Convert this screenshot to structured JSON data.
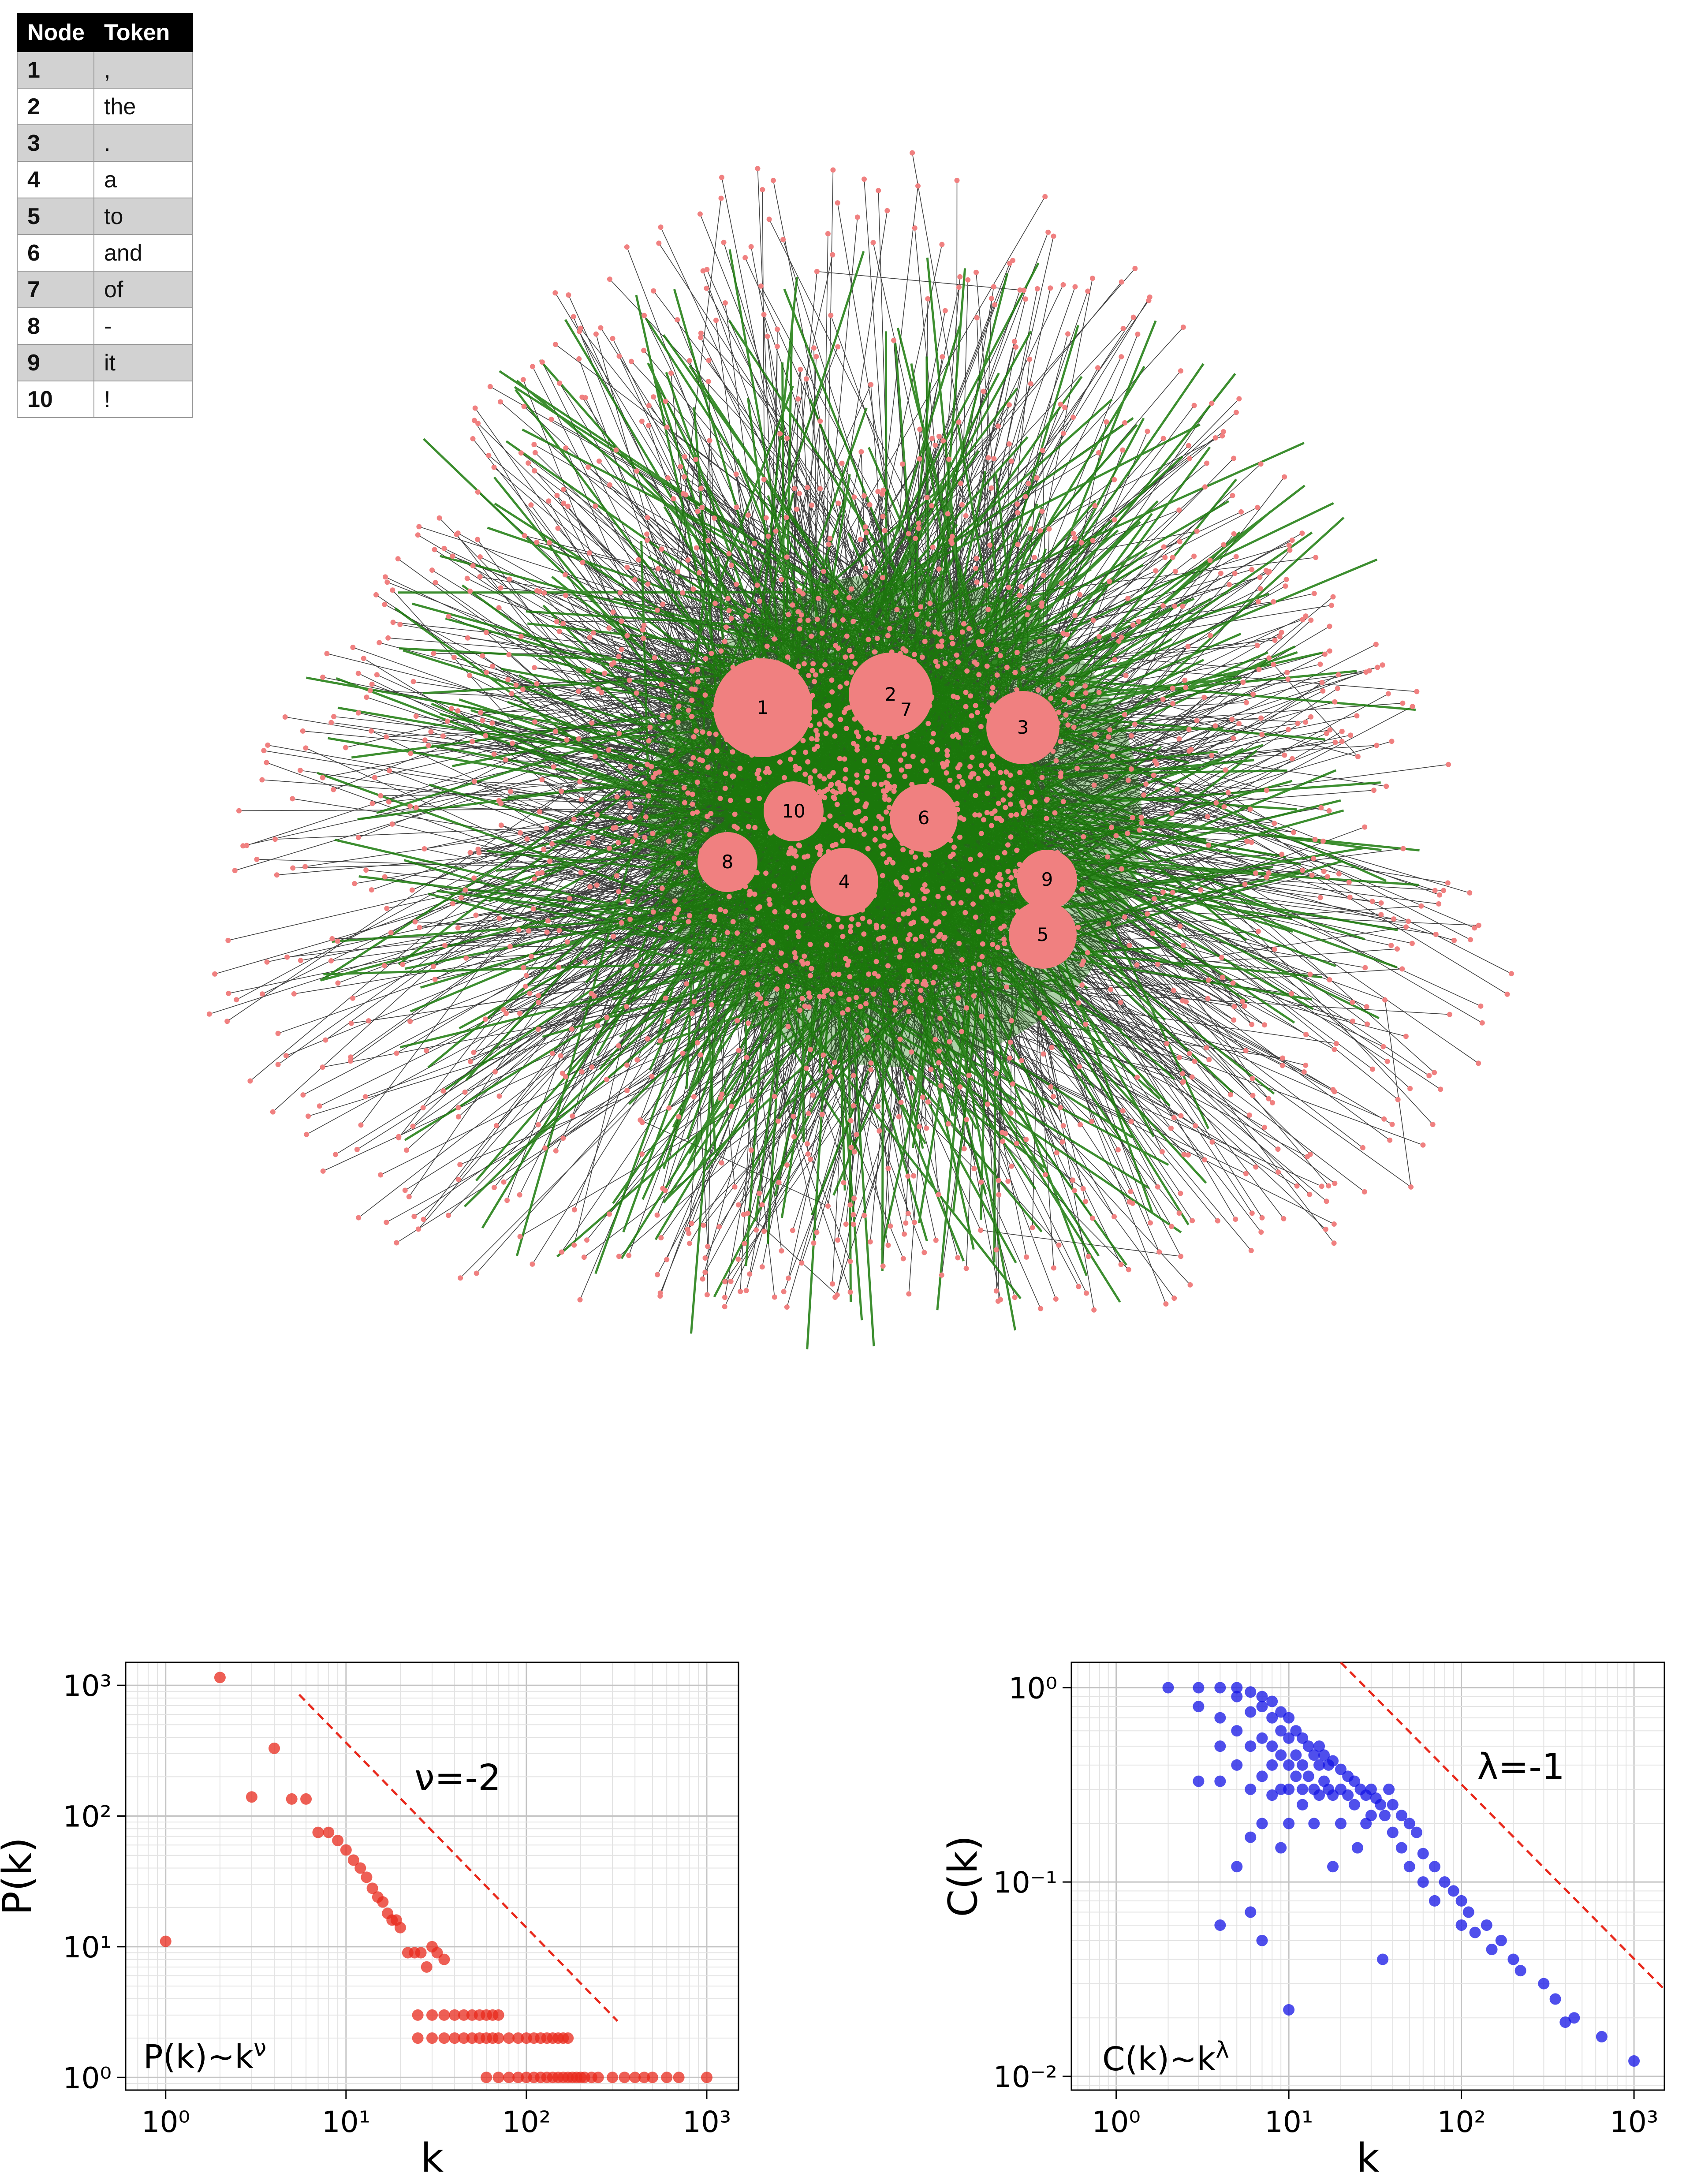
{
  "table": {
    "headers": {
      "node": "Node",
      "token": "Token"
    },
    "rows": [
      {
        "node": "1",
        "token": ","
      },
      {
        "node": "2",
        "token": "the"
      },
      {
        "node": "3",
        "token": "."
      },
      {
        "node": "4",
        "token": "a"
      },
      {
        "node": "5",
        "token": "to"
      },
      {
        "node": "6",
        "token": "and"
      },
      {
        "node": "7",
        "token": "of"
      },
      {
        "node": "8",
        "token": "-"
      },
      {
        "node": "9",
        "token": "it"
      },
      {
        "node": "10",
        "token": "!"
      }
    ]
  },
  "network": {
    "hubs": [
      {
        "label": "1",
        "radius": 112
      },
      {
        "label": "2",
        "radius": 95
      },
      {
        "label": "3",
        "radius": 83
      },
      {
        "label": "4",
        "radius": 77
      },
      {
        "label": "5",
        "radius": 77
      },
      {
        "label": "6",
        "radius": 77
      },
      {
        "label": "7",
        "radius": 0
      },
      {
        "label": "8",
        "radius": 68
      },
      {
        "label": "9",
        "radius": 68
      },
      {
        "label": "10",
        "radius": 68
      }
    ],
    "colors": {
      "node": "#f08080",
      "edge": "#000000",
      "highlight_edge": "#1a7a0a"
    }
  },
  "chart_data": [
    {
      "type": "scatter",
      "title": "",
      "xlabel": "k",
      "ylabel": "P(k)",
      "xscale": "log",
      "yscale": "log",
      "xlim": [
        0.6,
        1500
      ],
      "ylim": [
        0.8,
        1500
      ],
      "xticks": [
        1,
        10,
        100,
        1000
      ],
      "yticks": [
        1,
        10,
        100,
        1000
      ],
      "grid": true,
      "marker_color": "#e8291c",
      "points": [
        [
          1,
          11
        ],
        [
          2,
          1150
        ],
        [
          3,
          140
        ],
        [
          4,
          330
        ],
        [
          5,
          135
        ],
        [
          6,
          135
        ],
        [
          7,
          75
        ],
        [
          8,
          75
        ],
        [
          9,
          65
        ],
        [
          10,
          55
        ],
        [
          11,
          46
        ],
        [
          12,
          40
        ],
        [
          13,
          34
        ],
        [
          14,
          28
        ],
        [
          15,
          24
        ],
        [
          16,
          22
        ],
        [
          17,
          18
        ],
        [
          18,
          16
        ],
        [
          19,
          16
        ],
        [
          20,
          14
        ],
        [
          22,
          9
        ],
        [
          24,
          9
        ],
        [
          26,
          9
        ],
        [
          28,
          7
        ],
        [
          30,
          10
        ],
        [
          32,
          9
        ],
        [
          35,
          8
        ],
        [
          25,
          3
        ],
        [
          30,
          3
        ],
        [
          35,
          3
        ],
        [
          40,
          3
        ],
        [
          45,
          3
        ],
        [
          50,
          3
        ],
        [
          55,
          3
        ],
        [
          60,
          3
        ],
        [
          65,
          3
        ],
        [
          70,
          3
        ],
        [
          25,
          2
        ],
        [
          30,
          2
        ],
        [
          35,
          2
        ],
        [
          40,
          2
        ],
        [
          45,
          2
        ],
        [
          50,
          2
        ],
        [
          55,
          2
        ],
        [
          60,
          2
        ],
        [
          65,
          2
        ],
        [
          70,
          2
        ],
        [
          80,
          2
        ],
        [
          90,
          2
        ],
        [
          100,
          2
        ],
        [
          110,
          2
        ],
        [
          120,
          2
        ],
        [
          130,
          2
        ],
        [
          140,
          2
        ],
        [
          150,
          2
        ],
        [
          160,
          2
        ],
        [
          170,
          2
        ],
        [
          60,
          1
        ],
        [
          70,
          1
        ],
        [
          80,
          1
        ],
        [
          90,
          1
        ],
        [
          100,
          1
        ],
        [
          110,
          1
        ],
        [
          120,
          1
        ],
        [
          130,
          1
        ],
        [
          140,
          1
        ],
        [
          150,
          1
        ],
        [
          160,
          1
        ],
        [
          170,
          1
        ],
        [
          180,
          1
        ],
        [
          190,
          1
        ],
        [
          200,
          1
        ],
        [
          210,
          1
        ],
        [
          230,
          1
        ],
        [
          250,
          1
        ],
        [
          300,
          1
        ],
        [
          350,
          1
        ],
        [
          400,
          1
        ],
        [
          450,
          1
        ],
        [
          500,
          1
        ],
        [
          600,
          1
        ],
        [
          700,
          1
        ],
        [
          1000,
          1
        ]
      ],
      "reference_line": {
        "label": "ν=-2",
        "from": [
          5.5,
          850
        ],
        "to": [
          320,
          2.7
        ],
        "color": "#e8291c"
      },
      "annotation": "P(k)~k",
      "annotation_sup": "ν"
    },
    {
      "type": "scatter",
      "title": "",
      "xlabel": "k",
      "ylabel": "C(k)",
      "xscale": "log",
      "yscale": "log",
      "xlim": [
        0.55,
        1500
      ],
      "ylim": [
        0.0085,
        1.35
      ],
      "xticks": [
        1,
        10,
        100,
        1000
      ],
      "yticks": [
        0.01,
        0.1,
        1
      ],
      "grid": true,
      "marker_color": "#1414e6",
      "points": [
        [
          2,
          1.0
        ],
        [
          3,
          1.0
        ],
        [
          4,
          1.0
        ],
        [
          5,
          1.0
        ],
        [
          6,
          0.95
        ],
        [
          7,
          0.9
        ],
        [
          8,
          0.85
        ],
        [
          3,
          0.8
        ],
        [
          4,
          0.7
        ],
        [
          5,
          0.9
        ],
        [
          6,
          0.75
        ],
        [
          7,
          0.8
        ],
        [
          8,
          0.7
        ],
        [
          9,
          0.75
        ],
        [
          10,
          0.7
        ],
        [
          3,
          0.33
        ],
        [
          4,
          0.5
        ],
        [
          4,
          0.33
        ],
        [
          5,
          0.6
        ],
        [
          5,
          0.4
        ],
        [
          6,
          0.5
        ],
        [
          6,
          0.3
        ],
        [
          6,
          0.17
        ],
        [
          7,
          0.55
        ],
        [
          7,
          0.35
        ],
        [
          7,
          0.2
        ],
        [
          8,
          0.5
        ],
        [
          8,
          0.4
        ],
        [
          8,
          0.28
        ],
        [
          9,
          0.6
        ],
        [
          9,
          0.45
        ],
        [
          9,
          0.3
        ],
        [
          9,
          0.15
        ],
        [
          10,
          0.55
        ],
        [
          10,
          0.4
        ],
        [
          10,
          0.3
        ],
        [
          10,
          0.2
        ],
        [
          10,
          0.022
        ],
        [
          11,
          0.6
        ],
        [
          11,
          0.45
        ],
        [
          11,
          0.35
        ],
        [
          12,
          0.55
        ],
        [
          12,
          0.4
        ],
        [
          12,
          0.3
        ],
        [
          12,
          0.25
        ],
        [
          13,
          0.5
        ],
        [
          13,
          0.35
        ],
        [
          14,
          0.45
        ],
        [
          14,
          0.3
        ],
        [
          14,
          0.2
        ],
        [
          15,
          0.5
        ],
        [
          15,
          0.4
        ],
        [
          15,
          0.28
        ],
        [
          16,
          0.45
        ],
        [
          16,
          0.33
        ],
        [
          17,
          0.4
        ],
        [
          17,
          0.3
        ],
        [
          18,
          0.42
        ],
        [
          18,
          0.28
        ],
        [
          18,
          0.12
        ],
        [
          20,
          0.38
        ],
        [
          20,
          0.3
        ],
        [
          20,
          0.2
        ],
        [
          22,
          0.35
        ],
        [
          22,
          0.28
        ],
        [
          24,
          0.33
        ],
        [
          24,
          0.25
        ],
        [
          25,
          0.15
        ],
        [
          26,
          0.3
        ],
        [
          28,
          0.28
        ],
        [
          28,
          0.2
        ],
        [
          30,
          0.3
        ],
        [
          30,
          0.22
        ],
        [
          32,
          0.27
        ],
        [
          34,
          0.25
        ],
        [
          35,
          0.04
        ],
        [
          36,
          0.22
        ],
        [
          38,
          0.3
        ],
        [
          40,
          0.25
        ],
        [
          40,
          0.18
        ],
        [
          45,
          0.22
        ],
        [
          45,
          0.15
        ],
        [
          50,
          0.2
        ],
        [
          50,
          0.12
        ],
        [
          55,
          0.18
        ],
        [
          60,
          0.14
        ],
        [
          60,
          0.1
        ],
        [
          70,
          0.12
        ],
        [
          70,
          0.08
        ],
        [
          80,
          0.1
        ],
        [
          90,
          0.09
        ],
        [
          100,
          0.08
        ],
        [
          100,
          0.06
        ],
        [
          110,
          0.07
        ],
        [
          120,
          0.055
        ],
        [
          140,
          0.06
        ],
        [
          150,
          0.045
        ],
        [
          170,
          0.05
        ],
        [
          200,
          0.04
        ],
        [
          220,
          0.035
        ],
        [
          300,
          0.03
        ],
        [
          350,
          0.025
        ],
        [
          400,
          0.019
        ],
        [
          450,
          0.02
        ],
        [
          650,
          0.016
        ],
        [
          1000,
          0.012
        ],
        [
          6,
          0.07
        ],
        [
          7,
          0.05
        ],
        [
          5,
          0.12
        ],
        [
          4,
          0.06
        ]
      ],
      "reference_line": {
        "label": "λ=-1",
        "from": [
          20,
          1.35
        ],
        "to": [
          1500,
          0.028
        ],
        "color": "#e8291c"
      },
      "annotation": "C(k)~k",
      "annotation_sup": "λ"
    }
  ]
}
